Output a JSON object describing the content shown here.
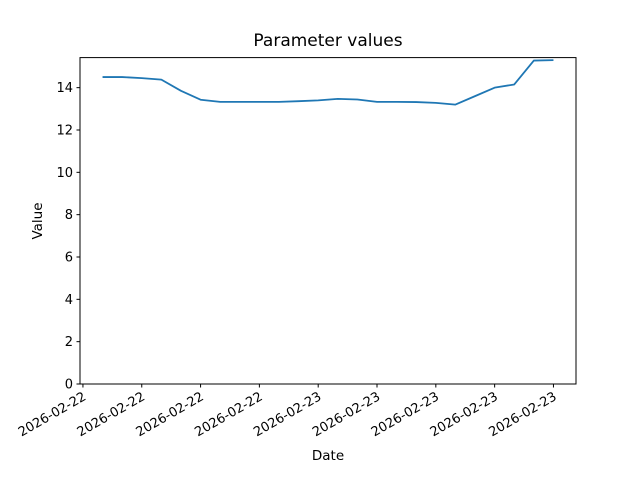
{
  "chart_data": {
    "type": "line",
    "title": "Parameter values",
    "xlabel": "Date",
    "ylabel": "Value",
    "grid": false,
    "line_color": "#1f77b4",
    "axis_color": "#000000",
    "y_ticks": [
      0,
      2,
      4,
      6,
      8,
      10,
      12,
      14
    ],
    "ylim": [
      0,
      15.42
    ],
    "x_tick_labels": [
      "2026-02-22",
      "2026-02-22",
      "2026-02-22",
      "2026-02-22",
      "2026-02-23",
      "2026-02-23",
      "2026-02-23",
      "2026-02-23",
      "2026-02-23"
    ],
    "x_tick_hours": [
      0,
      3,
      6,
      9,
      12,
      15,
      18,
      21,
      24
    ],
    "xlim_hours": [
      -0.15,
      25.15
    ],
    "series": [
      {
        "x_hours": [
          1,
          2,
          3,
          4,
          5,
          6,
          7,
          8,
          9,
          10,
          11,
          12,
          13,
          14,
          15,
          16,
          17,
          18,
          19,
          20,
          21,
          22,
          23,
          24
        ],
        "values": [
          14.5,
          14.5,
          14.45,
          14.38,
          13.85,
          13.43,
          13.33,
          13.33,
          13.33,
          13.33,
          13.36,
          13.4,
          13.47,
          13.44,
          13.33,
          13.33,
          13.32,
          13.28,
          13.2,
          13.6,
          14.0,
          14.15,
          15.28,
          15.3
        ]
      }
    ]
  }
}
